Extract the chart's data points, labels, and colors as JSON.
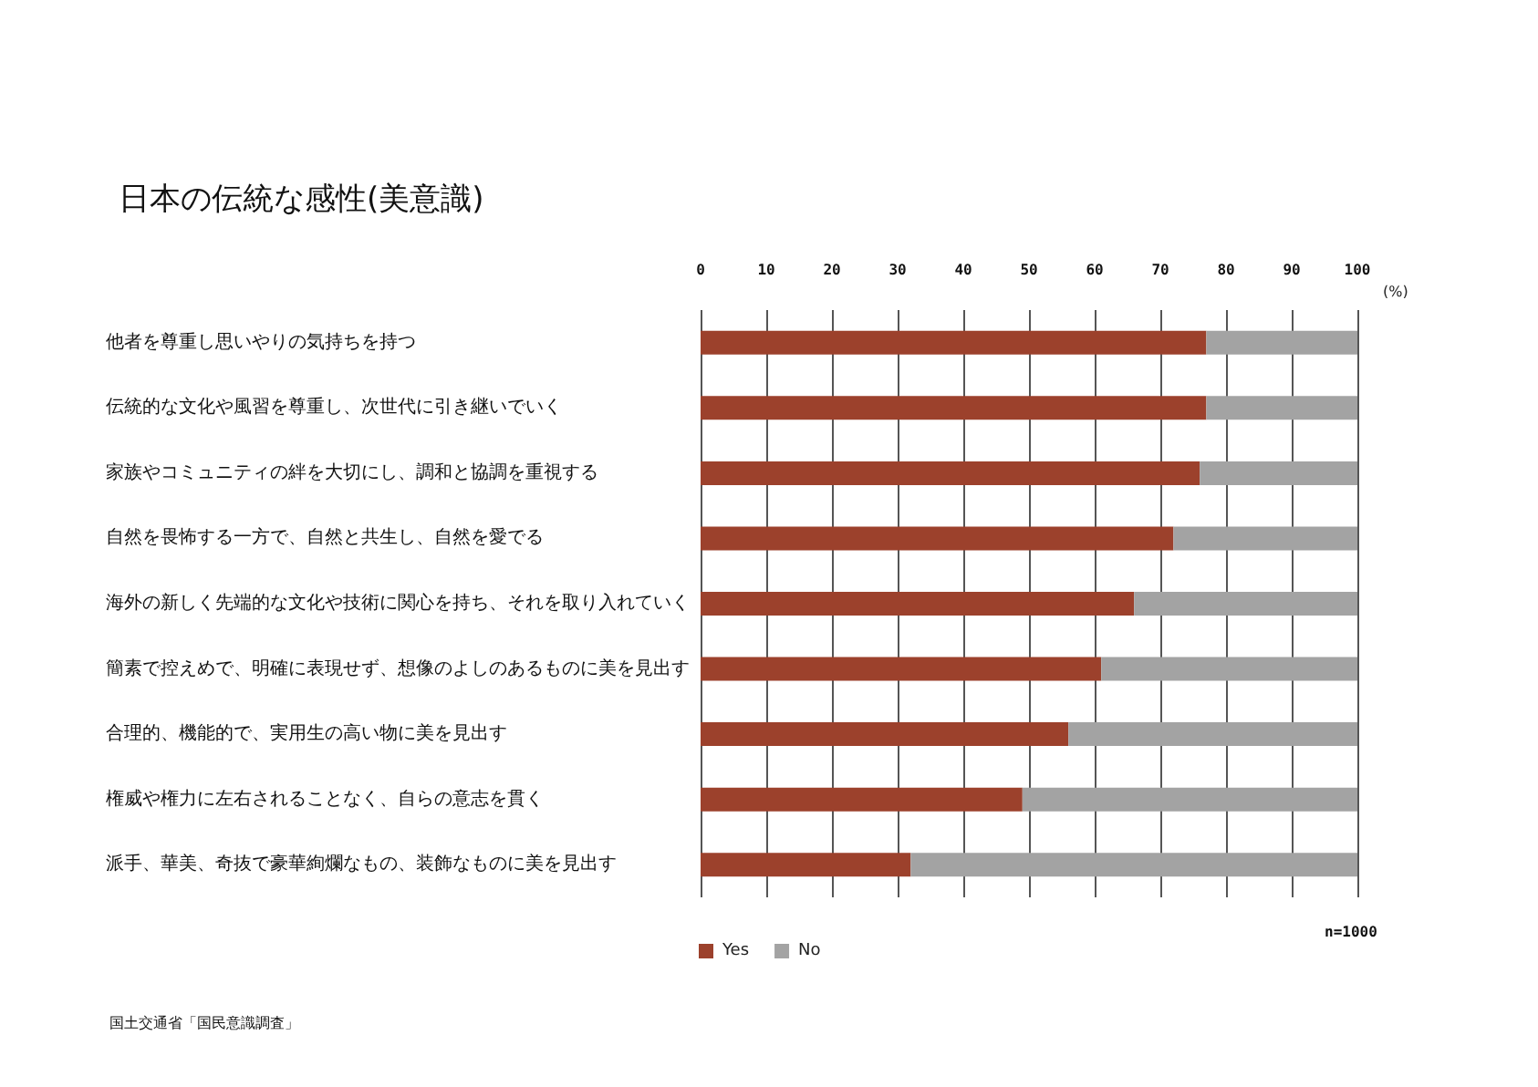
{
  "chart_data": {
    "type": "bar",
    "orientation": "horizontal",
    "stacked": true,
    "title": "日本の伝統な感性(美意識)",
    "xlabel": "(%)",
    "categories": [
      "他者を尊重し思いやりの気持ちを持つ",
      "伝統的な文化や風習を尊重し、次世代に引き継いでいく",
      "家族やコミュニティの絆を大切にし、調和と協調を重視する",
      "自然を畏怖する一方で、自然と共生し、自然を愛でる",
      "海外の新しく先端的な文化や技術に関心を持ち、それを取り入れていく",
      "簡素で控えめで、明確に表現せず、想像のよしのあるものに美を見出す",
      "合理的、機能的で、実用生の高い物に美を見出す",
      "権威や権力に左右されることなく、自らの意志を貫く",
      "派手、華美、奇抜で豪華絢爛なもの、装飾なものに美を見出す"
    ],
    "series": [
      {
        "name": "Yes",
        "color": "#9c412c",
        "values": [
          77,
          77,
          76,
          72,
          66,
          61,
          56,
          49,
          32
        ]
      },
      {
        "name": "No",
        "color": "#a3a3a3",
        "values": [
          23,
          23,
          24,
          28,
          34,
          39,
          44,
          51,
          68
        ]
      }
    ],
    "xlim": [
      0,
      100
    ],
    "xticks": [
      0,
      10,
      20,
      30,
      40,
      50,
      60,
      70,
      80,
      90,
      100
    ],
    "grid": "x",
    "legend": "bottom left",
    "annotations": [
      "n=1000",
      "国土交通省「国民意識調査」"
    ]
  }
}
